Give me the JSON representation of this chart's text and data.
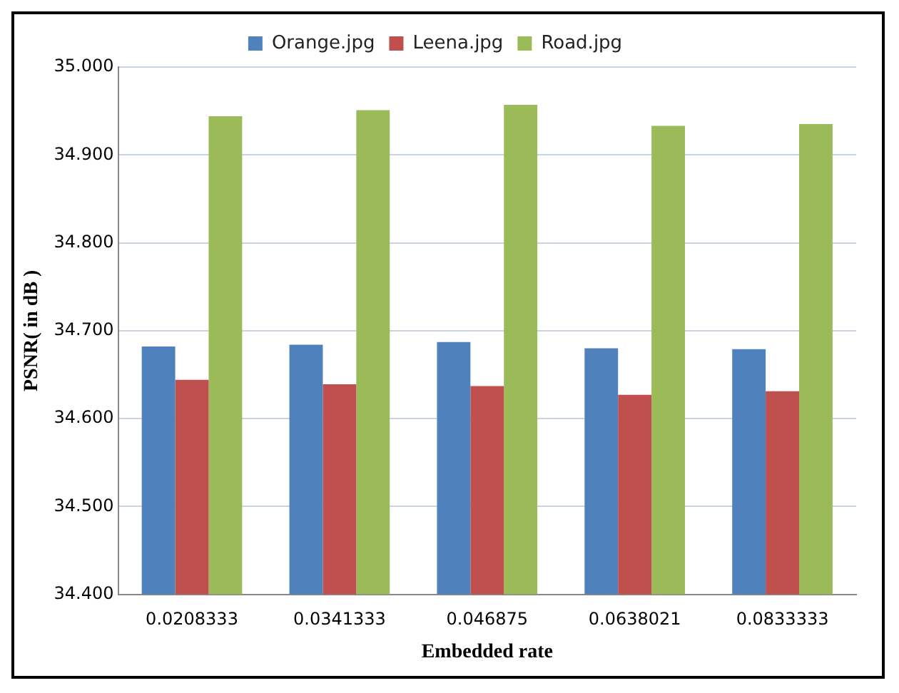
{
  "chart_data": {
    "type": "bar",
    "xlabel": "Embedded rate",
    "ylabel": "PSNR( in dB )",
    "categories": [
      "0.0208333",
      "0.0341333",
      "0.046875",
      "0.0638021",
      "0.0833333"
    ],
    "series": [
      {
        "name": "Orange.jpg",
        "color": "#4f81bd",
        "values": [
          34.682,
          34.684,
          34.687,
          34.68,
          34.679
        ]
      },
      {
        "name": "Leena.jpg",
        "color": "#c0504d",
        "values": [
          34.644,
          34.639,
          34.637,
          34.627,
          34.631
        ]
      },
      {
        "name": "Road.jpg",
        "color": "#9bbb59",
        "values": [
          34.944,
          34.951,
          34.957,
          34.933,
          34.935
        ]
      }
    ],
    "ylim": [
      34.4,
      35.0
    ],
    "yticks": [
      {
        "value": 34.4,
        "label": "34.400"
      },
      {
        "value": 34.5,
        "label": "34.500"
      },
      {
        "value": 34.6,
        "label": "34.600"
      },
      {
        "value": 34.7,
        "label": "34.700"
      },
      {
        "value": 34.8,
        "label": "34.800"
      },
      {
        "value": 34.9,
        "label": "34.900"
      },
      {
        "value": 35.0,
        "label": "35.000"
      }
    ],
    "grid": "y",
    "legend": "top"
  }
}
